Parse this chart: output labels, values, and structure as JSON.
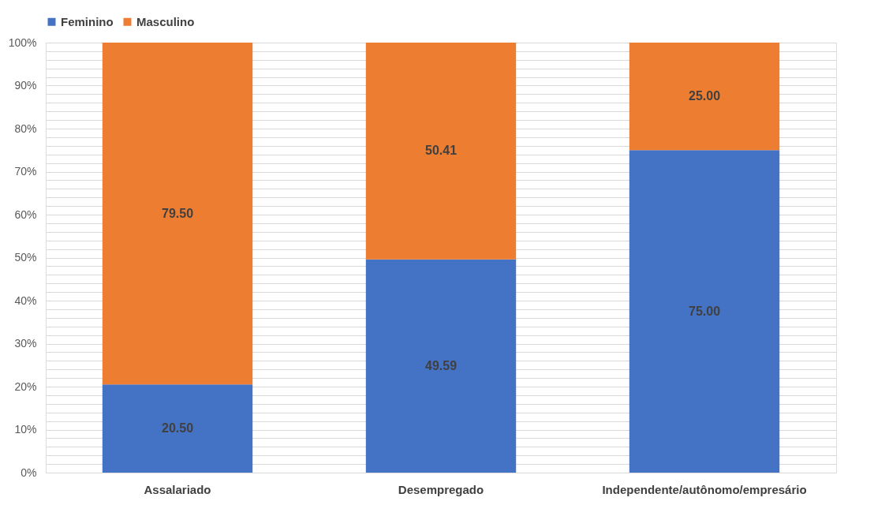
{
  "chart_data": {
    "type": "bar",
    "stacked": true,
    "categories": [
      "Assalariado",
      "Desempregado",
      "Independente/autônomo/empresário"
    ],
    "series": [
      {
        "name": "Feminino",
        "color": "#4472c4",
        "values": [
          20.5,
          49.59,
          75.0
        ],
        "value_labels": [
          "20.50",
          "49.59",
          "75.00"
        ]
      },
      {
        "name": "Masculino",
        "color": "#ed7d31",
        "values": [
          79.5,
          50.41,
          25.0
        ],
        "value_labels": [
          "79.50",
          "50.41",
          "25.00"
        ]
      }
    ],
    "ylim": [
      0,
      100
    ],
    "yticks": [
      {
        "value": 0,
        "label": "0%"
      },
      {
        "value": 2,
        "label": null
      },
      {
        "value": 4,
        "label": null
      },
      {
        "value": 6,
        "label": null
      },
      {
        "value": 8,
        "label": null
      },
      {
        "value": 10,
        "label": "10%"
      },
      {
        "value": 12,
        "label": null
      },
      {
        "value": 14,
        "label": null
      },
      {
        "value": 16,
        "label": null
      },
      {
        "value": 18,
        "label": null
      },
      {
        "value": 20,
        "label": "20%"
      },
      {
        "value": 22,
        "label": null
      },
      {
        "value": 24,
        "label": null
      },
      {
        "value": 26,
        "label": null
      },
      {
        "value": 28,
        "label": null
      },
      {
        "value": 30,
        "label": "30%"
      },
      {
        "value": 32,
        "label": null
      },
      {
        "value": 34,
        "label": null
      },
      {
        "value": 36,
        "label": null
      },
      {
        "value": 38,
        "label": null
      },
      {
        "value": 40,
        "label": "40%"
      },
      {
        "value": 42,
        "label": null
      },
      {
        "value": 44,
        "label": null
      },
      {
        "value": 46,
        "label": null
      },
      {
        "value": 48,
        "label": null
      },
      {
        "value": 50,
        "label": "50%"
      },
      {
        "value": 52,
        "label": null
      },
      {
        "value": 54,
        "label": null
      },
      {
        "value": 56,
        "label": null
      },
      {
        "value": 58,
        "label": null
      },
      {
        "value": 60,
        "label": "60%"
      },
      {
        "value": 62,
        "label": null
      },
      {
        "value": 64,
        "label": null
      },
      {
        "value": 66,
        "label": null
      },
      {
        "value": 68,
        "label": null
      },
      {
        "value": 70,
        "label": "70%"
      },
      {
        "value": 72,
        "label": null
      },
      {
        "value": 74,
        "label": null
      },
      {
        "value": 76,
        "label": null
      },
      {
        "value": 78,
        "label": null
      },
      {
        "value": 80,
        "label": "80%"
      },
      {
        "value": 82,
        "label": null
      },
      {
        "value": 84,
        "label": null
      },
      {
        "value": 86,
        "label": null
      },
      {
        "value": 88,
        "label": null
      },
      {
        "value": 90,
        "label": "90%"
      },
      {
        "value": 92,
        "label": null
      },
      {
        "value": 94,
        "label": null
      },
      {
        "value": 96,
        "label": null
      },
      {
        "value": 98,
        "label": null
      },
      {
        "value": 100,
        "label": "100%"
      }
    ],
    "grid": "y",
    "legend": "top"
  }
}
